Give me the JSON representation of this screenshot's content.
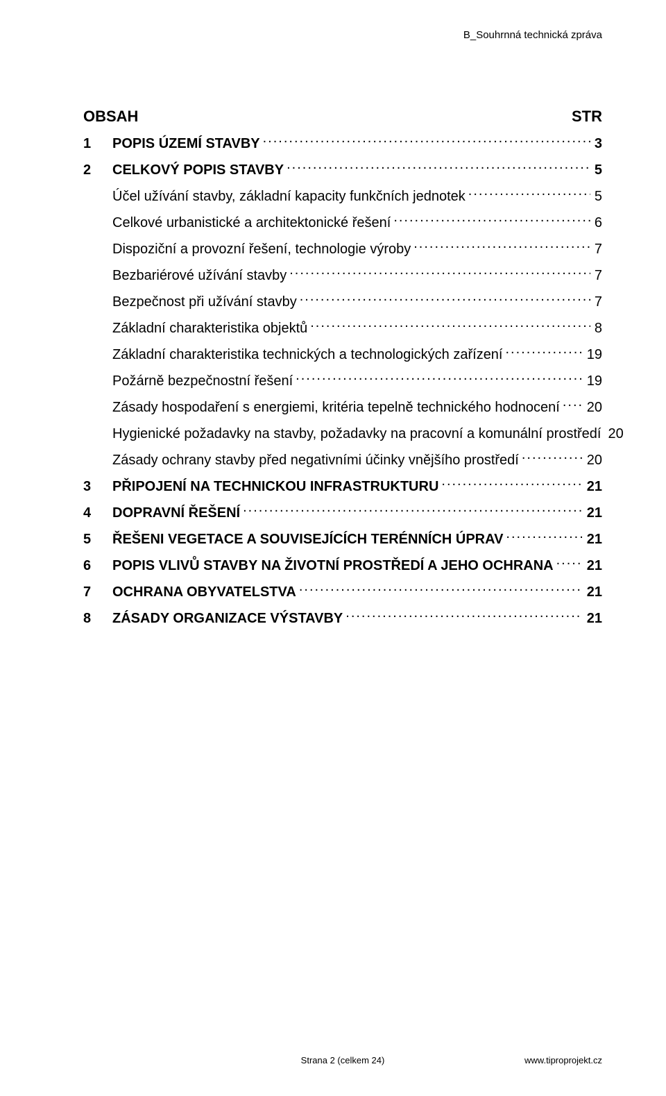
{
  "header": {
    "doc_title": "B_Souhrnná technická zpráva"
  },
  "obsah": {
    "label": "OBSAH",
    "str_label": "STR"
  },
  "toc": [
    {
      "num": "1",
      "title": "POPIS ÚZEMÍ STAVBY",
      "page": "3",
      "bold": true
    },
    {
      "num": "2",
      "title": "CELKOVÝ POPIS STAVBY",
      "page": "5",
      "bold": true
    },
    {
      "num": "",
      "title": "Účel užívání stavby, základní kapacity funkčních jednotek",
      "page": "5",
      "bold": false
    },
    {
      "num": "",
      "title": "Celkové urbanistické a architektonické řešení",
      "page": "6",
      "bold": false
    },
    {
      "num": "",
      "title": "Dispoziční a provozní řešení, technologie výroby",
      "page": "7",
      "bold": false
    },
    {
      "num": "",
      "title": "Bezbariérové užívání stavby",
      "page": "7",
      "bold": false
    },
    {
      "num": "",
      "title": "Bezpečnost při užívání stavby",
      "page": "7",
      "bold": false
    },
    {
      "num": "",
      "title": "Základní charakteristika objektů",
      "page": "8",
      "bold": false
    },
    {
      "num": "",
      "title": "Základní charakteristika technických a technologických zařízení",
      "page": "19",
      "bold": false
    },
    {
      "num": "",
      "title": "Požárně bezpečnostní řešení",
      "page": "19",
      "bold": false
    },
    {
      "num": "",
      "title": "Zásady hospodaření s energiemi, kritéria tepelně technického hodnocení",
      "page": "20",
      "bold": false
    },
    {
      "num": "",
      "title": "Hygienické požadavky na stavby, požadavky na pracovní a komunální prostředí",
      "page": "20",
      "bold": false
    },
    {
      "num": "",
      "title": "Zásady ochrany stavby před negativními účinky vnějšího prostředí",
      "page": "20",
      "bold": false
    },
    {
      "num": "3",
      "title": "PŘIPOJENÍ NA TECHNICKOU INFRASTRUKTURU",
      "page": "21",
      "bold": true
    },
    {
      "num": "4",
      "title": "DOPRAVNÍ ŘEŠENÍ",
      "page": "21",
      "bold": true
    },
    {
      "num": "5",
      "title": "ŘEŠENI VEGETACE A SOUVISEJÍCÍCH TERÉNNÍCH ÚPRAV",
      "page": "21",
      "bold": true
    },
    {
      "num": "6",
      "title": "POPIS VLIVŮ STAVBY NA ŽIVOTNÍ PROSTŘEDÍ A JEHO OCHRANA",
      "page": "21",
      "bold": true
    },
    {
      "num": "7",
      "title": "OCHRANA OBYVATELSTVA",
      "page": "21",
      "bold": true
    },
    {
      "num": "8",
      "title": "ZÁSADY ORGANIZACE VÝSTAVBY",
      "page": "21",
      "bold": true
    }
  ],
  "footer": {
    "center": "Strana 2 (celkem 24)",
    "right": "www.tiproprojekt.cz"
  }
}
